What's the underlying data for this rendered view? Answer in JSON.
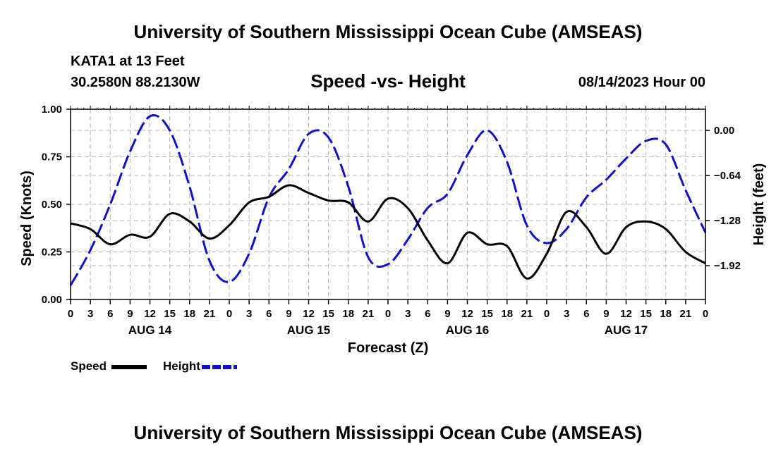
{
  "page": {
    "title": "University of Southern Mississippi Ocean Cube (AMSEAS)",
    "footer_title": "University of Southern Mississippi Ocean Cube (AMSEAS)",
    "station": "KATA1 at 13 Feet",
    "coords": "30.2580N  88.2130W",
    "subtitle": "Speed -vs- Height",
    "datetime": "08/14/2023 Hour 00"
  },
  "colors": {
    "speed": "#000000",
    "height": "#1010c8",
    "grid": "#b4b4b4"
  },
  "chart_data": {
    "type": "line",
    "title": "Speed -vs- Height",
    "xlabel": "Forecast (Z)",
    "ylabel": "Speed (Knots)",
    "ylabel_right": "Height (feet)",
    "xlim": [
      0,
      96
    ],
    "ylim": [
      0,
      1
    ],
    "ylim_right": [
      -2.4,
      0.3
    ],
    "x_ticks": [
      0,
      3,
      6,
      9,
      12,
      15,
      18,
      21,
      24,
      27,
      30,
      33,
      36,
      39,
      42,
      45,
      48,
      51,
      54,
      57,
      60,
      63,
      66,
      69,
      72,
      75,
      78,
      81,
      84,
      87,
      90,
      93,
      96
    ],
    "x_tick_labels": [
      "0",
      "3",
      "6",
      "9",
      "12",
      "15",
      "18",
      "21",
      "0",
      "3",
      "6",
      "9",
      "12",
      "15",
      "18",
      "21",
      "0",
      "3",
      "6",
      "9",
      "12",
      "15",
      "18",
      "21",
      "0",
      "3",
      "6",
      "9",
      "12",
      "15",
      "18",
      "21",
      "0"
    ],
    "day_labels": [
      {
        "x": 12,
        "label": "AUG 14"
      },
      {
        "x": 36,
        "label": "AUG 15"
      },
      {
        "x": 60,
        "label": "AUG 16"
      },
      {
        "x": 84,
        "label": "AUG 17"
      }
    ],
    "left_ticks": [
      0.0,
      0.25,
      0.5,
      0.75,
      1.0
    ],
    "left_tick_labels": [
      "0.00",
      "0.25",
      "0.50",
      "0.75",
      "1.00"
    ],
    "right_ticks": [
      0.0,
      -0.64,
      -1.28,
      -1.92
    ],
    "right_tick_labels": [
      "0.00",
      "−0.64",
      "−1.28",
      "−1.92"
    ],
    "series": [
      {
        "name": "Speed",
        "axis": "left",
        "style": "solid",
        "x": [
          0,
          3,
          6,
          9,
          12,
          15,
          18,
          21,
          24,
          27,
          30,
          33,
          36,
          39,
          42,
          45,
          48,
          51,
          54,
          57,
          60,
          63,
          66,
          69,
          72,
          75,
          78,
          81,
          84,
          87,
          90,
          93,
          96
        ],
        "values": [
          0.4,
          0.37,
          0.29,
          0.34,
          0.33,
          0.45,
          0.41,
          0.32,
          0.39,
          0.51,
          0.54,
          0.6,
          0.56,
          0.52,
          0.51,
          0.41,
          0.53,
          0.48,
          0.31,
          0.19,
          0.35,
          0.29,
          0.28,
          0.11,
          0.24,
          0.46,
          0.38,
          0.24,
          0.38,
          0.41,
          0.37,
          0.25,
          0.19
        ]
      },
      {
        "name": "Height",
        "axis": "right",
        "style": "dashed",
        "x": [
          0,
          3,
          6,
          9,
          12,
          15,
          18,
          21,
          24,
          27,
          30,
          33,
          36,
          39,
          42,
          45,
          48,
          51,
          54,
          57,
          60,
          63,
          66,
          69,
          72,
          75,
          78,
          81,
          84,
          87,
          90,
          93,
          96
        ],
        "values": [
          -2.2,
          -1.7,
          -1.05,
          -0.3,
          0.2,
          0.0,
          -0.8,
          -1.85,
          -2.15,
          -1.75,
          -0.95,
          -0.55,
          -0.05,
          -0.1,
          -0.8,
          -1.8,
          -1.9,
          -1.55,
          -1.1,
          -0.9,
          -0.35,
          0.0,
          -0.45,
          -1.35,
          -1.6,
          -1.4,
          -0.95,
          -0.7,
          -0.4,
          -0.15,
          -0.2,
          -0.85,
          -1.45
        ]
      }
    ],
    "legend": [
      {
        "name": "Speed",
        "color": "#000000",
        "style": "solid"
      },
      {
        "name": "Height",
        "color": "#1010c8",
        "style": "dashed"
      }
    ],
    "legend_position": "bottom-left",
    "grid": true
  }
}
